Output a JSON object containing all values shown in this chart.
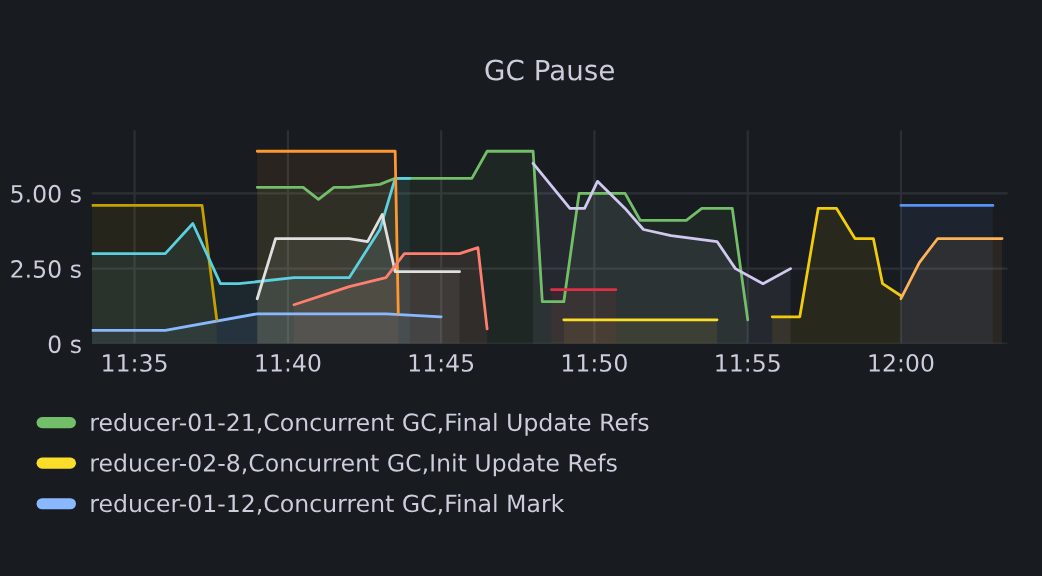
{
  "chart_data": {
    "type": "area",
    "title": "GC Pause",
    "xlim": [
      11.56,
      12.058
    ],
    "xticks": [
      {
        "value": 11.5833,
        "label": "11:35"
      },
      {
        "value": 11.6667,
        "label": "11:40"
      },
      {
        "value": 11.75,
        "label": "11:45"
      },
      {
        "value": 11.8333,
        "label": "11:50"
      },
      {
        "value": 11.9167,
        "label": "11:55"
      },
      {
        "value": 12.0,
        "label": "12:00"
      }
    ],
    "ylim": [
      0,
      7.1
    ],
    "yticks": [
      {
        "value": 0,
        "label": "0 s"
      },
      {
        "value": 2.5,
        "label": "2.50 s"
      },
      {
        "value": 5,
        "label": "5.00 s"
      }
    ],
    "grid": true,
    "legend": "bottom",
    "series": [
      {
        "name": "reducer-01-21,Concurrent GC,Final Update Refs",
        "color": "#73bf69",
        "x": [
          11.65,
          11.675,
          11.6833,
          11.6917,
          11.7,
          11.7167,
          11.725,
          11.7667,
          11.775,
          11.8,
          11.805,
          11.8167,
          11.825,
          11.8333,
          11.85,
          11.8583,
          11.8833,
          11.8917,
          11.9083,
          11.9167
        ],
        "values": [
          5.2,
          5.2,
          4.8,
          5.2,
          5.2,
          5.3,
          5.5,
          5.5,
          6.4,
          6.4,
          1.4,
          1.4,
          5.0,
          5.0,
          5.0,
          4.1,
          4.1,
          4.5,
          4.5,
          0.8
        ]
      },
      {
        "name": "reducer-02-8,Concurrent GC,Init Update Refs",
        "color": "#fade2a",
        "x": [
          11.8167,
          11.85,
          11.8667,
          11.9
        ],
        "values": [
          0.8,
          0.8,
          0.8,
          0.8
        ]
      },
      {
        "name": "reducer-01-12,Concurrent GC,Final Mark",
        "color": "#8ab8ff",
        "x": [
          11.56,
          11.6,
          11.65,
          11.7,
          11.72,
          11.75
        ],
        "values": [
          0.45,
          0.45,
          1.0,
          1.0,
          1.0,
          0.9
        ]
      },
      {
        "color": "#c4a000",
        "x": [
          11.56,
          11.62,
          11.628
        ],
        "values": [
          4.6,
          4.6,
          0.8
        ]
      },
      {
        "color": "#5ad0e0",
        "x": [
          11.56,
          11.6,
          11.615,
          11.63,
          11.64,
          11.67,
          11.7,
          11.7167,
          11.725,
          11.733
        ],
        "values": [
          3.0,
          3.0,
          4.0,
          2.0,
          2.0,
          2.2,
          2.2,
          3.8,
          5.5,
          5.5
        ]
      },
      {
        "color": "#ff9830",
        "x": [
          11.65,
          11.725,
          11.7267
        ],
        "values": [
          6.4,
          6.4,
          1.0
        ]
      },
      {
        "color": "#e0e0e0",
        "x": [
          11.65,
          11.66,
          11.7,
          11.71,
          11.718,
          11.725,
          11.76
        ],
        "values": [
          1.5,
          3.5,
          3.5,
          3.4,
          4.3,
          2.4,
          2.4
        ]
      },
      {
        "color": "#ff7f6e",
        "x": [
          11.67,
          11.7,
          11.72,
          11.73,
          11.76,
          11.77,
          11.775
        ],
        "values": [
          1.3,
          1.9,
          2.2,
          3.0,
          3.0,
          3.2,
          0.5
        ]
      },
      {
        "color": "#d0c8f0",
        "x": [
          11.8,
          11.82,
          11.828,
          11.835,
          11.85,
          11.86,
          11.875,
          11.9,
          11.91,
          11.925,
          11.94
        ],
        "values": [
          6.0,
          4.5,
          4.5,
          5.4,
          4.5,
          3.8,
          3.6,
          3.4,
          2.5,
          2.0,
          2.5
        ]
      },
      {
        "color": "#f2cc0c",
        "x": [
          11.93,
          11.945,
          11.955,
          11.965,
          11.975,
          11.985,
          11.99,
          12.0
        ],
        "values": [
          0.9,
          0.9,
          4.5,
          4.5,
          3.5,
          3.5,
          2.0,
          1.6
        ]
      },
      {
        "color": "#5794f2",
        "x": [
          12.0,
          12.05
        ],
        "values": [
          4.6,
          4.6
        ]
      },
      {
        "color": "#ffb357",
        "x": [
          12.0,
          12.01,
          12.02,
          12.035,
          12.055
        ],
        "values": [
          1.5,
          2.7,
          3.5,
          3.5,
          3.5
        ]
      },
      {
        "color": "#e02f44",
        "x": [
          11.81,
          11.845
        ],
        "values": [
          1.8,
          1.8
        ]
      }
    ]
  }
}
